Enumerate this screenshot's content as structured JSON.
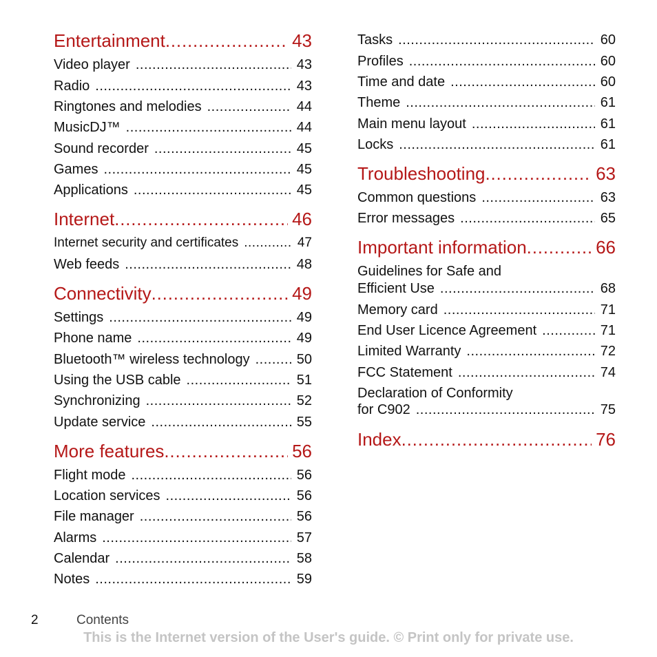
{
  "left_column": {
    "entertainment": {
      "title": "Entertainment",
      "page": "43",
      "items": [
        {
          "label": "Video player",
          "page": "43"
        },
        {
          "label": "Radio",
          "page": "43"
        },
        {
          "label": "Ringtones and melodies",
          "page": "44"
        },
        {
          "label": "MusicDJ™",
          "page": "44"
        },
        {
          "label": "Sound recorder",
          "page": "45"
        },
        {
          "label": "Games",
          "page": "45"
        },
        {
          "label": "Applications",
          "page": "45"
        }
      ]
    },
    "internet": {
      "title": "Internet",
      "page": "46",
      "items": [
        {
          "label": "Internet security and certificates",
          "page": "47"
        },
        {
          "label": "Web feeds",
          "page": "48"
        }
      ]
    },
    "connectivity": {
      "title": "Connectivity",
      "page": "49",
      "items": [
        {
          "label": "Settings",
          "page": "49"
        },
        {
          "label": "Phone name",
          "page": "49"
        },
        {
          "label": "Bluetooth™ wireless technology",
          "page": "50"
        },
        {
          "label": "Using the USB cable",
          "page": "51"
        },
        {
          "label": "Synchronizing",
          "page": "52"
        },
        {
          "label": "Update service",
          "page": "55"
        }
      ]
    },
    "more_features": {
      "title": "More features",
      "page": "56",
      "items": [
        {
          "label": "Flight mode",
          "page": "56"
        },
        {
          "label": "Location services",
          "page": "56"
        },
        {
          "label": "File manager",
          "page": "56"
        },
        {
          "label": "Alarms",
          "page": "57"
        },
        {
          "label": "Calendar",
          "page": "58"
        },
        {
          "label": "Notes",
          "page": "59"
        }
      ]
    }
  },
  "right_column": {
    "continued_items": [
      {
        "label": "Tasks",
        "page": "60"
      },
      {
        "label": "Profiles",
        "page": "60"
      },
      {
        "label": "Time and date",
        "page": "60"
      },
      {
        "label": "Theme",
        "page": "61"
      },
      {
        "label": "Main menu layout",
        "page": "61"
      },
      {
        "label": "Locks",
        "page": "61"
      }
    ],
    "troubleshooting": {
      "title": "Troubleshooting",
      "page": "63",
      "items": [
        {
          "label": "Common questions",
          "page": "63"
        },
        {
          "label": "Error messages",
          "page": "65"
        }
      ]
    },
    "important_information": {
      "title": "Important information",
      "page": "66",
      "guidelines_line1": "Guidelines for Safe and",
      "guidelines_line2": "Efficient Use",
      "guidelines_page": "68",
      "items": [
        {
          "label": "Memory card",
          "page": "71"
        },
        {
          "label": "End User Licence Agreement",
          "page": "71"
        },
        {
          "label": "Limited Warranty",
          "page": "72"
        },
        {
          "label": "FCC Statement",
          "page": "74"
        }
      ],
      "declaration_line1": "Declaration of Conformity",
      "declaration_line2": "for C902",
      "declaration_page": "75"
    },
    "index": {
      "title": "Index",
      "page": "76"
    }
  },
  "footer": {
    "page_number": "2",
    "section": "Contents",
    "notice": "This is the Internet version of the User's guide. © Print only for private use."
  }
}
